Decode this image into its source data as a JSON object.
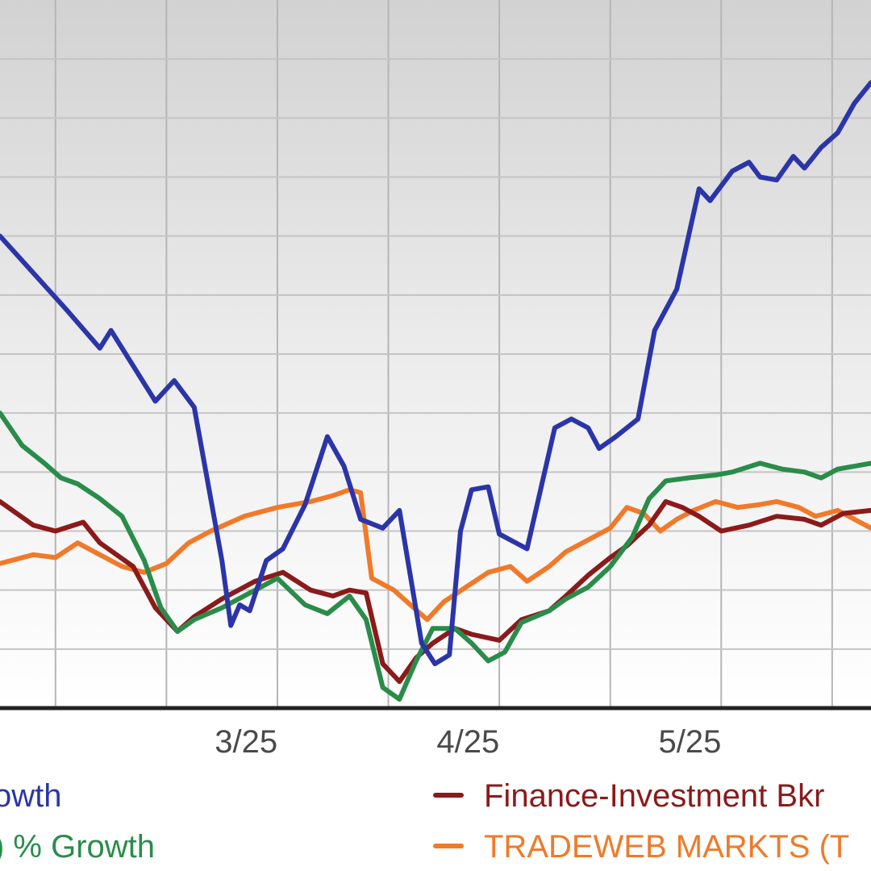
{
  "chart_data": {
    "type": "line",
    "x_ticks": [
      "3/25",
      "4/25",
      "5/25"
    ],
    "series": [
      {
        "name": "owth",
        "color": "#2b35a8",
        "points": [
          [
            0.0,
            8.0
          ],
          [
            0.6,
            5.5
          ],
          [
            0.9,
            4.2
          ],
          [
            1.0,
            4.8
          ],
          [
            1.4,
            2.4
          ],
          [
            1.57,
            3.1
          ],
          [
            1.75,
            2.2
          ],
          [
            2.0,
            -3.0
          ],
          [
            2.08,
            -5.2
          ],
          [
            2.16,
            -4.5
          ],
          [
            2.25,
            -4.7
          ],
          [
            2.4,
            -3.0
          ],
          [
            2.55,
            -2.6
          ],
          [
            2.75,
            -1.1
          ],
          [
            2.95,
            1.2
          ],
          [
            3.1,
            0.2
          ],
          [
            3.25,
            -1.6
          ],
          [
            3.45,
            -1.9
          ],
          [
            3.6,
            -1.3
          ],
          [
            3.8,
            -5.8
          ],
          [
            3.92,
            -6.5
          ],
          [
            4.05,
            -6.2
          ],
          [
            4.15,
            -2.0
          ],
          [
            4.25,
            -0.6
          ],
          [
            4.4,
            -0.5
          ],
          [
            4.5,
            -2.1
          ],
          [
            4.75,
            -2.6
          ],
          [
            5.0,
            1.5
          ],
          [
            5.15,
            1.8
          ],
          [
            5.3,
            1.5
          ],
          [
            5.4,
            0.8
          ],
          [
            5.55,
            1.2
          ],
          [
            5.75,
            1.8
          ],
          [
            5.9,
            4.8
          ],
          [
            6.1,
            6.2
          ],
          [
            6.3,
            9.6
          ],
          [
            6.4,
            9.2
          ],
          [
            6.6,
            10.2
          ],
          [
            6.75,
            10.5
          ],
          [
            6.85,
            10.0
          ],
          [
            7.0,
            9.9
          ],
          [
            7.15,
            10.7
          ],
          [
            7.25,
            10.3
          ],
          [
            7.4,
            11.0
          ],
          [
            7.55,
            11.5
          ],
          [
            7.7,
            12.5
          ],
          [
            7.85,
            13.2
          ]
        ]
      },
      {
        "name": "Finance-Investment Bkr",
        "color": "#8b1a1a",
        "points": [
          [
            0.0,
            -1.0
          ],
          [
            0.3,
            -1.8
          ],
          [
            0.5,
            -2.0
          ],
          [
            0.75,
            -1.7
          ],
          [
            0.9,
            -2.4
          ],
          [
            1.2,
            -3.2
          ],
          [
            1.4,
            -4.6
          ],
          [
            1.6,
            -5.4
          ],
          [
            1.75,
            -4.9
          ],
          [
            2.0,
            -4.3
          ],
          [
            2.3,
            -3.7
          ],
          [
            2.55,
            -3.4
          ],
          [
            2.8,
            -4.0
          ],
          [
            3.0,
            -4.2
          ],
          [
            3.15,
            -4.0
          ],
          [
            3.3,
            -4.1
          ],
          [
            3.45,
            -6.5
          ],
          [
            3.6,
            -7.1
          ],
          [
            3.75,
            -6.3
          ],
          [
            3.9,
            -5.8
          ],
          [
            4.1,
            -5.3
          ],
          [
            4.25,
            -5.5
          ],
          [
            4.5,
            -5.7
          ],
          [
            4.7,
            -5.0
          ],
          [
            4.95,
            -4.7
          ],
          [
            5.1,
            -4.2
          ],
          [
            5.3,
            -3.5
          ],
          [
            5.5,
            -2.9
          ],
          [
            5.65,
            -2.5
          ],
          [
            5.85,
            -1.8
          ],
          [
            6.0,
            -1.0
          ],
          [
            6.15,
            -1.2
          ],
          [
            6.3,
            -1.5
          ],
          [
            6.5,
            -2.0
          ],
          [
            6.75,
            -1.8
          ],
          [
            7.0,
            -1.5
          ],
          [
            7.25,
            -1.6
          ],
          [
            7.4,
            -1.8
          ],
          [
            7.6,
            -1.4
          ],
          [
            7.85,
            -1.3
          ]
        ]
      },
      {
        "name": ") % Growth",
        "color": "#2a8c4a",
        "points": [
          [
            0.0,
            2.0
          ],
          [
            0.2,
            0.9
          ],
          [
            0.4,
            0.3
          ],
          [
            0.55,
            -0.2
          ],
          [
            0.7,
            -0.4
          ],
          [
            0.9,
            -0.9
          ],
          [
            1.1,
            -1.5
          ],
          [
            1.3,
            -3.0
          ],
          [
            1.45,
            -4.6
          ],
          [
            1.6,
            -5.4
          ],
          [
            1.75,
            -5.0
          ],
          [
            2.0,
            -4.6
          ],
          [
            2.3,
            -4.0
          ],
          [
            2.5,
            -3.6
          ],
          [
            2.75,
            -4.5
          ],
          [
            2.95,
            -4.8
          ],
          [
            3.15,
            -4.2
          ],
          [
            3.3,
            -5.0
          ],
          [
            3.45,
            -7.3
          ],
          [
            3.6,
            -7.7
          ],
          [
            3.75,
            -6.4
          ],
          [
            3.9,
            -5.3
          ],
          [
            4.1,
            -5.3
          ],
          [
            4.25,
            -5.8
          ],
          [
            4.4,
            -6.4
          ],
          [
            4.55,
            -6.1
          ],
          [
            4.7,
            -5.1
          ],
          [
            4.95,
            -4.7
          ],
          [
            5.1,
            -4.3
          ],
          [
            5.3,
            -3.9
          ],
          [
            5.5,
            -3.2
          ],
          [
            5.7,
            -2.2
          ],
          [
            5.85,
            -0.9
          ],
          [
            6.0,
            -0.3
          ],
          [
            6.2,
            -0.2
          ],
          [
            6.45,
            -0.1
          ],
          [
            6.6,
            0.0
          ],
          [
            6.85,
            0.3
          ],
          [
            7.05,
            0.1
          ],
          [
            7.25,
            0.0
          ],
          [
            7.4,
            -0.2
          ],
          [
            7.55,
            0.1
          ],
          [
            7.85,
            0.3
          ]
        ]
      },
      {
        "name": "TRADEWEB MARKTS (T",
        "color": "#f07a2a",
        "points": [
          [
            0.0,
            -3.1
          ],
          [
            0.3,
            -2.8
          ],
          [
            0.5,
            -2.9
          ],
          [
            0.7,
            -2.4
          ],
          [
            0.9,
            -2.8
          ],
          [
            1.1,
            -3.2
          ],
          [
            1.3,
            -3.4
          ],
          [
            1.5,
            -3.1
          ],
          [
            1.7,
            -2.4
          ],
          [
            1.9,
            -2.0
          ],
          [
            2.2,
            -1.5
          ],
          [
            2.5,
            -1.2
          ],
          [
            2.8,
            -1.0
          ],
          [
            3.0,
            -0.8
          ],
          [
            3.15,
            -0.6
          ],
          [
            3.25,
            -0.7
          ],
          [
            3.35,
            -3.6
          ],
          [
            3.55,
            -4.0
          ],
          [
            3.7,
            -4.5
          ],
          [
            3.85,
            -5.0
          ],
          [
            4.0,
            -4.4
          ],
          [
            4.2,
            -3.9
          ],
          [
            4.4,
            -3.4
          ],
          [
            4.6,
            -3.2
          ],
          [
            4.75,
            -3.7
          ],
          [
            4.95,
            -3.2
          ],
          [
            5.1,
            -2.7
          ],
          [
            5.3,
            -2.3
          ],
          [
            5.5,
            -1.9
          ],
          [
            5.65,
            -1.2
          ],
          [
            5.8,
            -1.4
          ],
          [
            5.95,
            -2.0
          ],
          [
            6.1,
            -1.6
          ],
          [
            6.25,
            -1.3
          ],
          [
            6.45,
            -1.0
          ],
          [
            6.65,
            -1.2
          ],
          [
            6.85,
            -1.1
          ],
          [
            7.0,
            -1.0
          ],
          [
            7.2,
            -1.2
          ],
          [
            7.35,
            -1.5
          ],
          [
            7.55,
            -1.3
          ],
          [
            7.85,
            -1.9
          ]
        ]
      }
    ],
    "xlim": [
      0.0,
      7.85
    ],
    "ylim": [
      -8.0,
      16.0
    ],
    "x_tick_positions": [
      2.0,
      4.0,
      6.0
    ],
    "grid": true,
    "legend": {
      "placement": "bottom",
      "entries": [
        {
          "label": "owth",
          "color": "#2b35a8"
        },
        {
          "label": "Finance-Investment Bkr",
          "color": "#8b1a1a"
        },
        {
          "label": ") % Growth",
          "color": "#2a8c4a"
        },
        {
          "label": "TRADEWEB MARKTS (T",
          "color": "#f07a2a"
        }
      ]
    }
  }
}
